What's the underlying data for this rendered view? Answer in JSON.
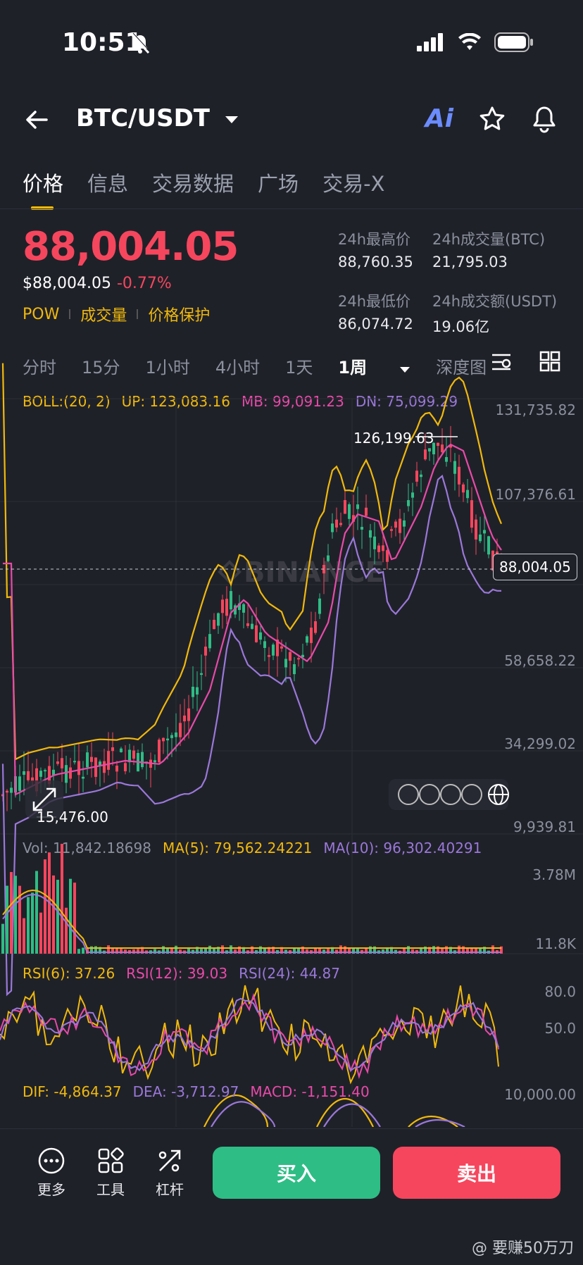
{
  "status": {
    "time": "10:51"
  },
  "header": {
    "pair": "BTC/USDT",
    "ai_label": "Ai"
  },
  "tabs": [
    "价格",
    "信息",
    "交易数据",
    "广场",
    "交易-X"
  ],
  "price": {
    "last": "88,004.05",
    "usd": "$88,004.05",
    "change": "-0.77%"
  },
  "tags": [
    "POW",
    "成交量",
    "价格保护"
  ],
  "stats": [
    {
      "label": "24h最高价",
      "value": "88,760.35"
    },
    {
      "label": "24h成交量(BTC)",
      "value": "21,795.03"
    },
    {
      "label": "24h最低价",
      "value": "86,074.72"
    },
    {
      "label": "24h成交额(USDT)",
      "value": "19.06亿"
    }
  ],
  "intervals": [
    "分时",
    "15分",
    "1小时",
    "4小时",
    "1天",
    "1周",
    "深度图"
  ],
  "boll": {
    "name": "BOLL:(20, 2)",
    "up": "UP: 123,083.16",
    "mb": "MB: 99,091.23",
    "dn": "DN: 75,099.29"
  },
  "price_axis": [
    "131,735.82",
    "107,376.61",
    "58,658.22",
    "34,299.02",
    "9,939.81"
  ],
  "high_marker": "126,199.63",
  "low_marker": "15,476.00",
  "last_tag": "88,004.05",
  "vol": {
    "vol": "Vol: 11,842.18698",
    "ma5": "MA(5): 79,562.24221",
    "ma10": "MA(10): 96,302.40291",
    "axis_top": "3.78M",
    "axis_bottom": "11.8K"
  },
  "rsi": {
    "r6": "RSI(6): 37.26",
    "r12": "RSI(12): 39.03",
    "r24": "RSI(24): 44.87",
    "axis_top": "80.0",
    "axis_mid": "50.0"
  },
  "macd": {
    "dif": "DIF: -4,864.37",
    "dea": "DEA: -3,712.97",
    "macd": "MACD: -1,151.40",
    "axis_top": "10,000.00"
  },
  "bottom": {
    "more": "更多",
    "tools": "工具",
    "leverage": "杠杆",
    "buy": "买入",
    "sell": "卖出"
  },
  "watermark": "@ 要赚50万刀",
  "colors": {
    "up": "#2ebd85",
    "down": "#f6465d",
    "accent": "#f0b90b",
    "mb": "#e84aa8",
    "dn": "#9a78d8"
  }
}
